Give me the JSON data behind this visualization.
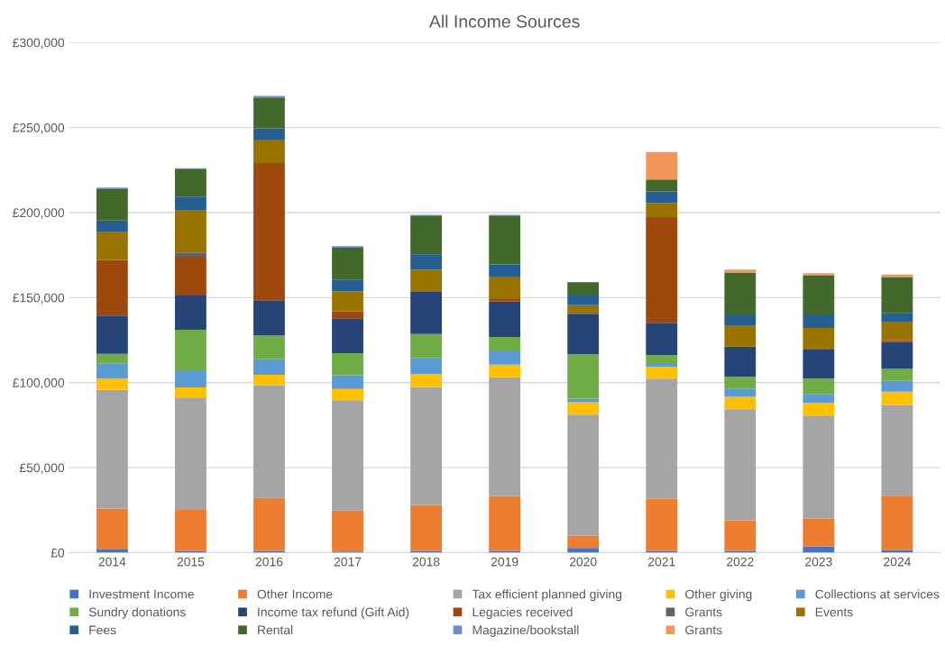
{
  "chart_data": {
    "type": "bar",
    "title": "All Income Sources",
    "stacked": true,
    "grid": "y",
    "legend": "bottom",
    "categories": [
      "2014",
      "2015",
      "2016",
      "2017",
      "2018",
      "2019",
      "2020",
      "2021",
      "2022",
      "2023",
      "2024"
    ],
    "ylim": [
      0,
      300000
    ],
    "yticks": [
      {
        "value": 0,
        "label": "£0"
      },
      {
        "value": 50000,
        "label": "£50,000"
      },
      {
        "value": 100000,
        "label": "£100,000"
      },
      {
        "value": 150000,
        "label": "£150,000"
      },
      {
        "value": 200000,
        "label": "£200,000"
      },
      {
        "value": 250000,
        "label": "£250,000"
      },
      {
        "value": 300000,
        "label": "£300,000"
      }
    ],
    "series": [
      {
        "name": "Investment Income",
        "color": "#4472c4",
        "values": [
          1800,
          1100,
          900,
          700,
          900,
          900,
          2700,
          900,
          900,
          3700,
          1600
        ]
      },
      {
        "name": "Other Income",
        "color": "#ed7d31",
        "values": [
          24200,
          24000,
          31300,
          24100,
          27200,
          32500,
          7400,
          30900,
          18200,
          16300,
          31900
        ]
      },
      {
        "name": "Tax efficient planned giving",
        "color": "#a5a5a5",
        "values": [
          69800,
          66200,
          66200,
          64800,
          69400,
          69800,
          71100,
          70500,
          65300,
          60600,
          53400
        ]
      },
      {
        "name": "Other giving",
        "color": "#ffc000",
        "values": [
          6600,
          5900,
          6200,
          6700,
          7600,
          7400,
          7200,
          6900,
          7300,
          7500,
          7800
        ]
      },
      {
        "name": "Collections at services",
        "color": "#5b9bd5",
        "values": [
          9000,
          9500,
          9200,
          8000,
          9500,
          8300,
          2200,
          2300,
          4600,
          5300,
          6400
        ]
      },
      {
        "name": "Sundry donations",
        "color": "#70ad47",
        "values": [
          5500,
          24400,
          13800,
          13000,
          14000,
          7900,
          26200,
          4600,
          7100,
          8900,
          7000
        ]
      },
      {
        "name": "Income tax refund (Gift Aid)",
        "color": "#264478",
        "values": [
          22500,
          20100,
          20800,
          20500,
          24700,
          20900,
          23700,
          19100,
          17800,
          17100,
          15900
        ]
      },
      {
        "name": "Legacies received",
        "color": "#9e480e",
        "values": [
          32700,
          22800,
          80700,
          4200,
          0,
          1400,
          0,
          62100,
          0,
          0,
          900
        ]
      },
      {
        "name": "Grants",
        "color": "#636363",
        "values": [
          0,
          2500,
          0,
          0,
          0,
          0,
          0,
          0,
          0,
          0,
          0
        ]
      },
      {
        "name": "Events",
        "color": "#997300",
        "values": [
          16300,
          24700,
          13800,
          11700,
          13000,
          13200,
          5100,
          8200,
          12500,
          12700,
          10600
        ]
      },
      {
        "name": "Fees",
        "color": "#255e91",
        "values": [
          6900,
          8200,
          6600,
          6900,
          9200,
          7200,
          6100,
          6900,
          6400,
          8000,
          5500
        ]
      },
      {
        "name": "Rental",
        "color": "#43682b",
        "values": [
          18500,
          16000,
          18200,
          18700,
          22700,
          28700,
          7300,
          7000,
          24600,
          22800,
          20800
        ]
      },
      {
        "name": "Magazine/bookstall",
        "color": "#698ed0",
        "values": [
          900,
          700,
          900,
          900,
          500,
          500,
          null,
          0,
          0,
          0,
          0
        ]
      },
      {
        "name": "Grants",
        "color": "#f1975a",
        "values": [
          0,
          0,
          0,
          0,
          0,
          0,
          0,
          16200,
          1700,
          1400,
          1800
        ]
      }
    ]
  }
}
